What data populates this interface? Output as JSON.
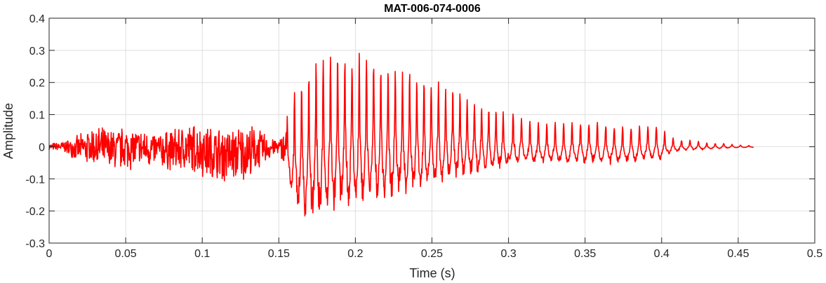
{
  "chart_data": {
    "type": "line",
    "title": "MAT-006-074-0006",
    "xlabel": "Time (s)",
    "ylabel": "Amplitude",
    "xlim": [
      0,
      0.5
    ],
    "ylim": [
      -0.3,
      0.4
    ],
    "xticks": [
      0,
      0.05,
      0.1,
      0.15,
      0.2,
      0.25,
      0.3,
      0.35,
      0.4,
      0.45,
      0.5
    ],
    "xtick_labels": [
      "0",
      "0.05",
      "0.1",
      "0.15",
      "0.2",
      "0.25",
      "0.3",
      "0.35",
      "0.4",
      "0.45",
      "0.5"
    ],
    "yticks": [
      -0.3,
      -0.2,
      -0.1,
      0,
      0.1,
      0.2,
      0.3,
      0.4
    ],
    "ytick_labels": [
      "-0.3",
      "-0.2",
      "-0.1",
      "0",
      "0.1",
      "0.2",
      "0.3",
      "0.4"
    ],
    "grid": true,
    "line_color": "#ff0000",
    "series": [
      {
        "x": [
          0,
          0.01,
          0.02,
          0.03,
          0.04,
          0.05,
          0.06,
          0.07,
          0.08,
          0.09,
          0.1,
          0.11,
          0.12,
          0.13,
          0.14,
          0.15,
          0.155,
          0.16,
          0.165,
          0.17,
          0.175,
          0.18,
          0.185,
          0.19,
          0.2,
          0.21,
          0.22,
          0.23,
          0.24,
          0.25,
          0.26,
          0.27,
          0.28,
          0.29,
          0.3,
          0.31,
          0.32,
          0.33,
          0.34,
          0.35,
          0.36,
          0.37,
          0.38,
          0.39,
          0.4,
          0.405,
          0.41,
          0.42,
          0.43,
          0.44,
          0.45,
          0.46
        ],
        "upper": [
          0.01,
          0.02,
          0.04,
          0.07,
          0.06,
          0.07,
          0.06,
          0.05,
          0.06,
          0.08,
          0.08,
          0.07,
          0.07,
          0.08,
          0.05,
          0.02,
          0.08,
          0.15,
          0.19,
          0.23,
          0.28,
          0.29,
          0.3,
          0.28,
          0.27,
          0.26,
          0.24,
          0.23,
          0.21,
          0.2,
          0.18,
          0.16,
          0.14,
          0.12,
          0.1,
          0.08,
          0.07,
          0.07,
          0.07,
          0.07,
          0.07,
          0.06,
          0.06,
          0.06,
          0.06,
          0.03,
          0.02,
          0.02,
          0.01,
          0.01,
          0.005,
          0.003
        ],
        "lower": [
          -0.01,
          -0.02,
          -0.05,
          -0.07,
          -0.08,
          -0.08,
          -0.07,
          -0.07,
          -0.08,
          -0.09,
          -0.1,
          -0.12,
          -0.12,
          -0.11,
          -0.06,
          -0.02,
          -0.1,
          -0.17,
          -0.2,
          -0.21,
          -0.22,
          -0.21,
          -0.19,
          -0.18,
          -0.17,
          -0.16,
          -0.15,
          -0.14,
          -0.13,
          -0.12,
          -0.1,
          -0.09,
          -0.08,
          -0.07,
          -0.06,
          -0.05,
          -0.05,
          -0.05,
          -0.05,
          -0.05,
          -0.05,
          -0.05,
          -0.05,
          -0.04,
          -0.04,
          -0.02,
          -0.015,
          -0.01,
          -0.008,
          -0.005,
          -0.003,
          -0.002
        ]
      }
    ]
  }
}
